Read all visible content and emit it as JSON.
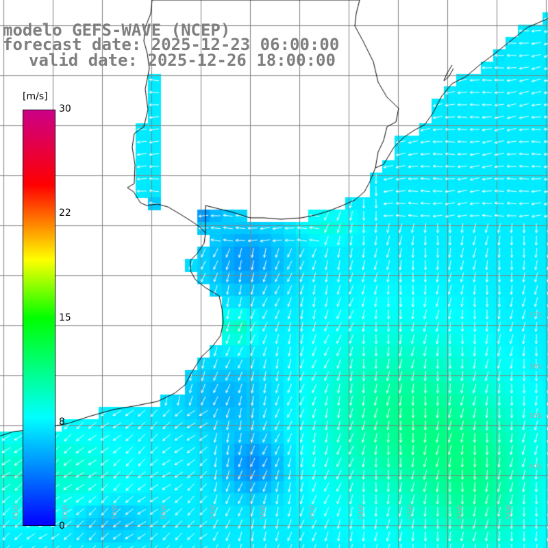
{
  "title": {
    "model": "modelo GEFS-WAVE (NCEP)",
    "forecast": "forecast date: 2025-12-23 06:00:00",
    "valid": "valid date: 2025-12-26 18:00:00"
  },
  "colorbar": {
    "unit": "[m/s]",
    "ticks": [
      "30",
      "22",
      "15",
      "8",
      "0"
    ],
    "colors": [
      "#0000ff",
      "#00ffff",
      "#00ff00",
      "#ffff00",
      "#ff0000",
      "#cc0088"
    ]
  },
  "grid_labels": {
    "lat": [
      "37S",
      "38S",
      "39S",
      "40S"
    ],
    "lon": [
      "61W",
      "60W",
      "59W",
      "58W",
      "57W",
      "56W",
      "55W",
      "54W",
      "53W",
      "52W",
      "51W"
    ]
  },
  "colors": {
    "land": "#ffffff",
    "coast": "#000000",
    "grid": "#808080",
    "arrows": "#ffffff",
    "title": "#7f7f7f"
  }
}
